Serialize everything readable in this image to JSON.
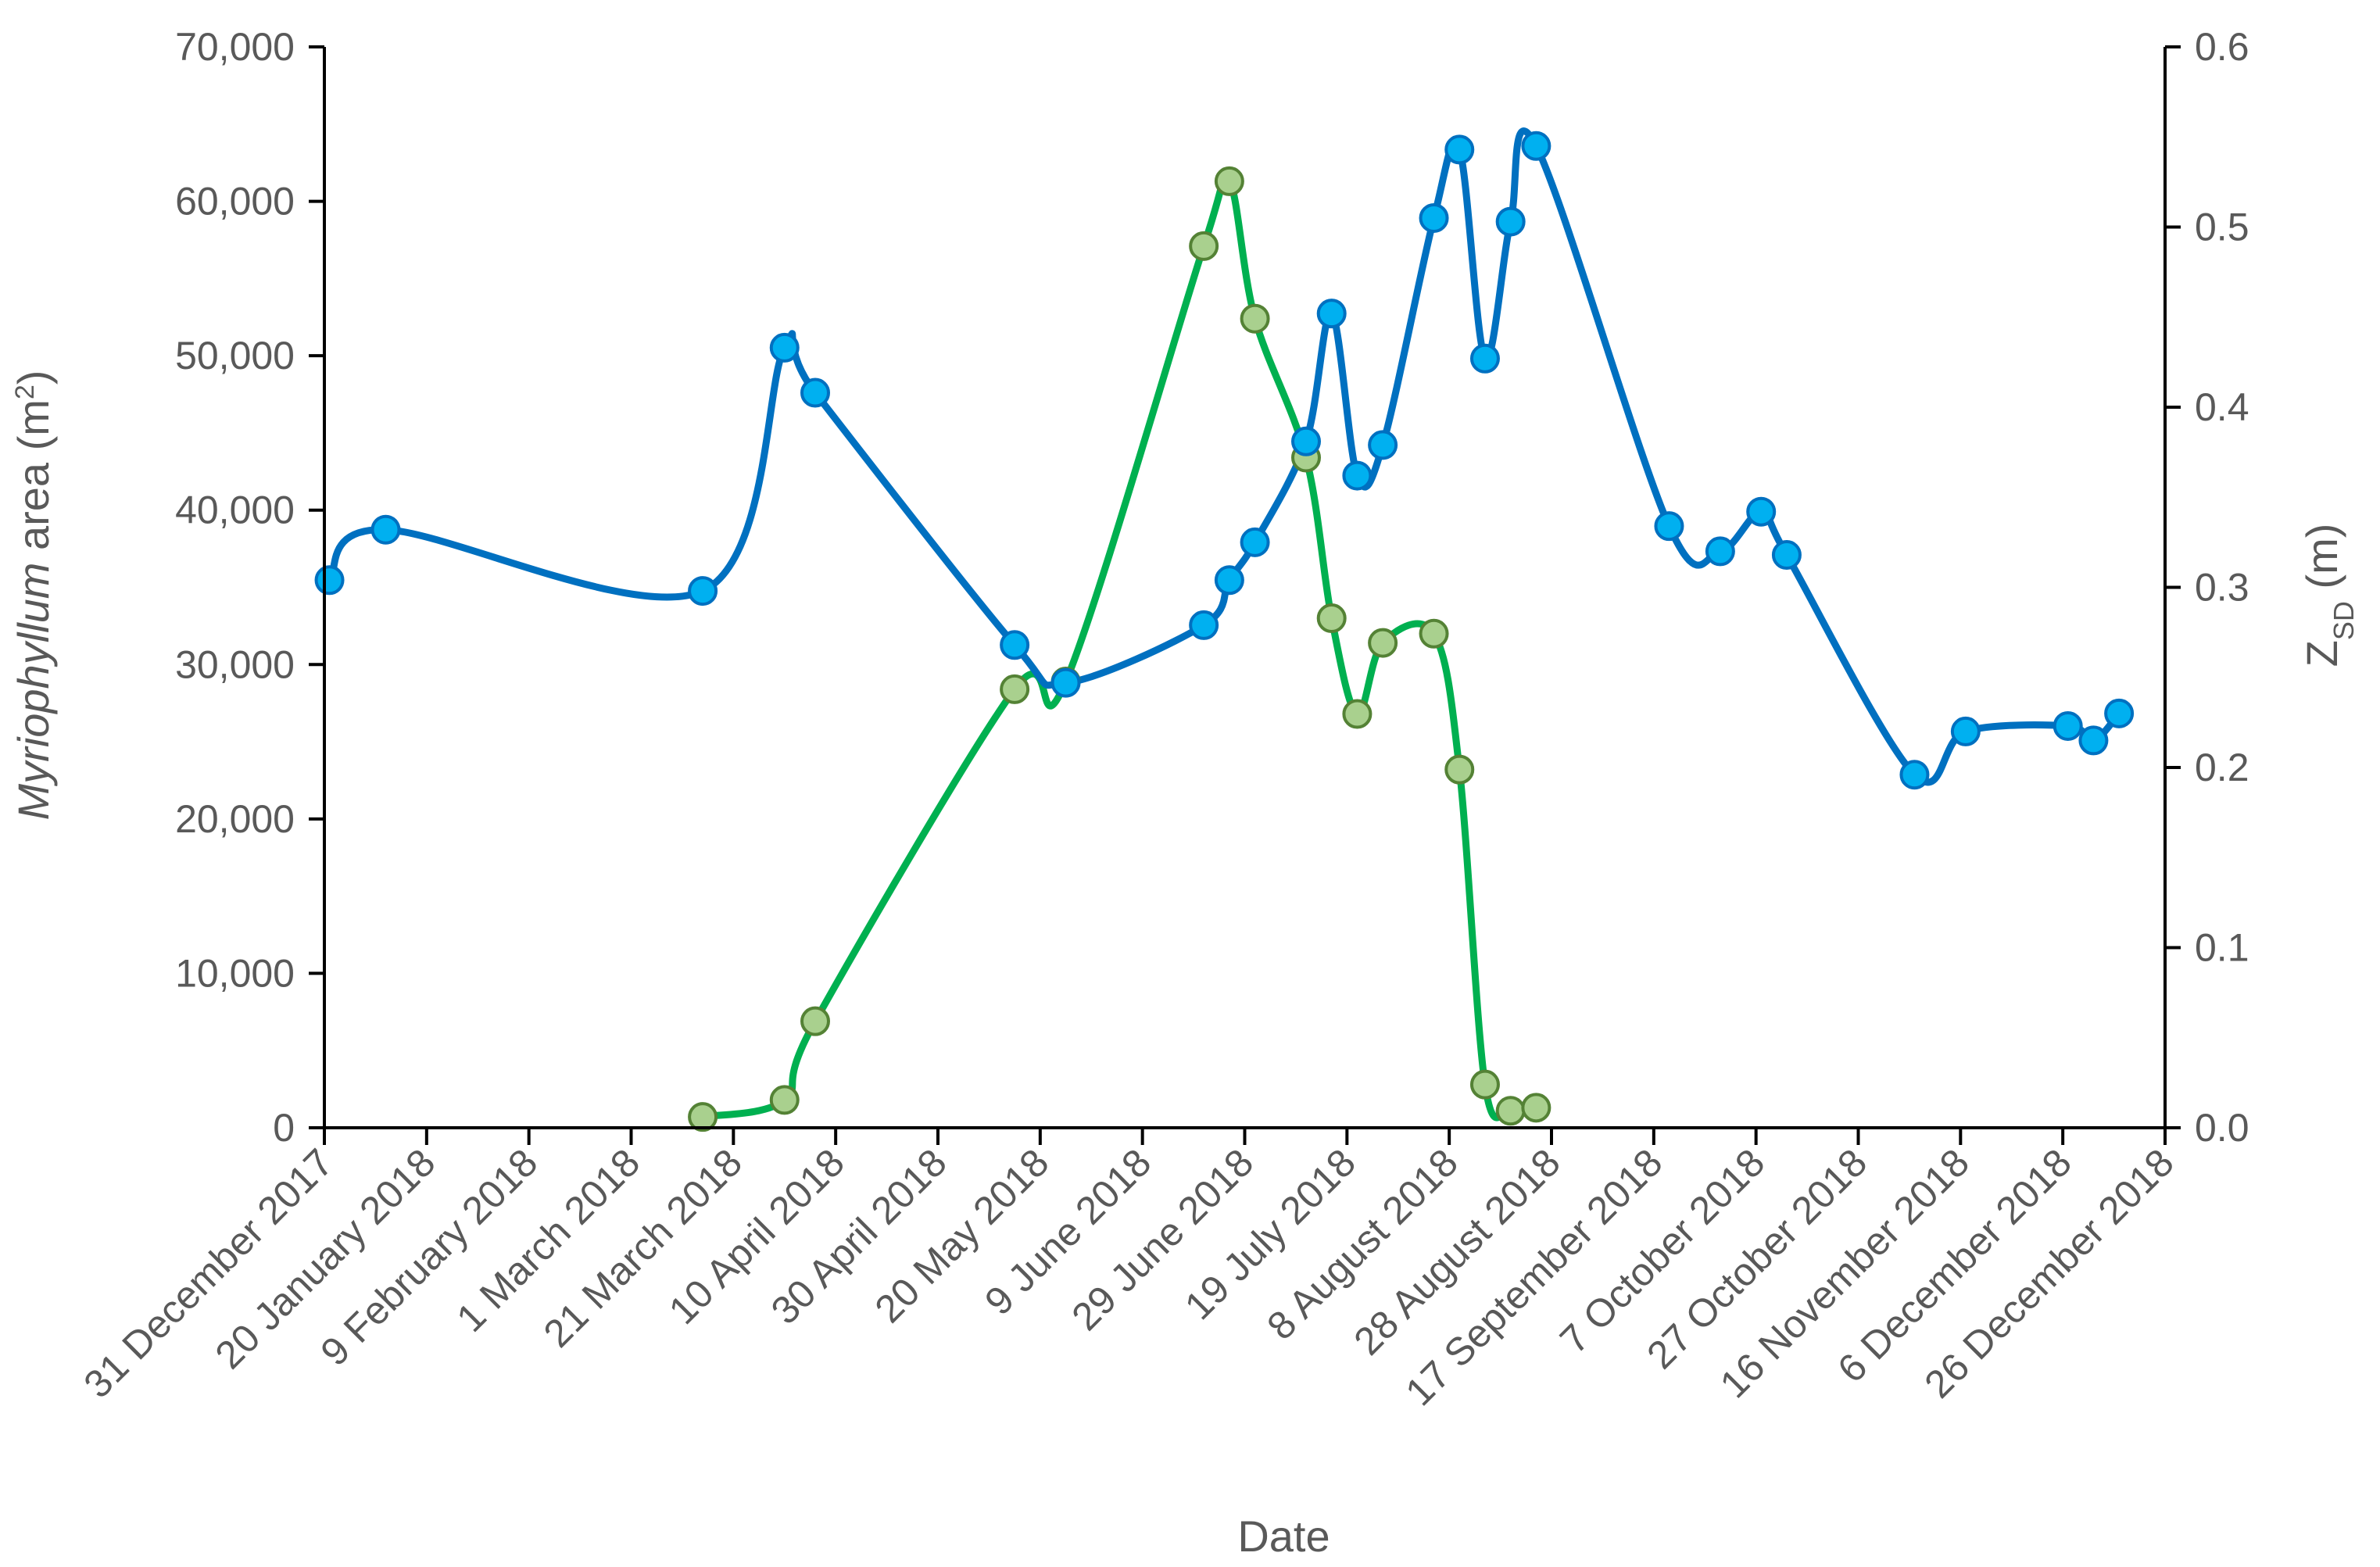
{
  "chart_data": {
    "type": "line",
    "xlabel": "Date",
    "ylabel": "Myriophyllum area (m²)",
    "ylabel_parts": {
      "italic": "Myriophyllum",
      "rest": " area (m",
      "sup": "2",
      "close": ")"
    },
    "y2label": "ZSD (m)",
    "y2label_parts": {
      "main": "Z",
      "sub": "SD",
      "rest": " (m)"
    },
    "x_domain": [
      "2017-12-31",
      "2018-12-26"
    ],
    "x_ticks": [
      {
        "date": "2017-12-31",
        "label": "31 December 2017"
      },
      {
        "date": "2018-01-20",
        "label": "20 January 2018"
      },
      {
        "date": "2018-02-09",
        "label": "9 February 2018"
      },
      {
        "date": "2018-03-01",
        "label": "1 March 2018"
      },
      {
        "date": "2018-03-21",
        "label": "21 March 2018"
      },
      {
        "date": "2018-04-10",
        "label": "10 April 2018"
      },
      {
        "date": "2018-04-30",
        "label": "30 April 2018"
      },
      {
        "date": "2018-05-20",
        "label": "20 May 2018"
      },
      {
        "date": "2018-06-09",
        "label": "9 June 2018"
      },
      {
        "date": "2018-06-29",
        "label": "29 June 2018"
      },
      {
        "date": "2018-07-19",
        "label": "19 July 2018"
      },
      {
        "date": "2018-08-08",
        "label": "8 August 2018"
      },
      {
        "date": "2018-08-28",
        "label": "28 August 2018"
      },
      {
        "date": "2018-09-17",
        "label": "17 September 2018"
      },
      {
        "date": "2018-10-07",
        "label": "7 October 2018"
      },
      {
        "date": "2018-10-27",
        "label": "27 October 2018"
      },
      {
        "date": "2018-11-16",
        "label": "16 November 2018"
      },
      {
        "date": "2018-12-06",
        "label": "6 December 2018"
      },
      {
        "date": "2018-12-26",
        "label": "26 December 2018"
      }
    ],
    "ylim": [
      0,
      70000
    ],
    "y_ticks": [
      {
        "value": 0,
        "label": "0"
      },
      {
        "value": 10000,
        "label": "10,000"
      },
      {
        "value": 20000,
        "label": "20,000"
      },
      {
        "value": 30000,
        "label": "30,000"
      },
      {
        "value": 40000,
        "label": "40,000"
      },
      {
        "value": 50000,
        "label": "50,000"
      },
      {
        "value": 60000,
        "label": "60,000"
      },
      {
        "value": 70000,
        "label": "70,000"
      }
    ],
    "y2lim": [
      0,
      0.6
    ],
    "y2_ticks": [
      {
        "value": 0,
        "label": "0.0"
      },
      {
        "value": 0.1,
        "label": "0.1"
      },
      {
        "value": 0.2,
        "label": "0.2"
      },
      {
        "value": 0.3,
        "label": "0.3"
      },
      {
        "value": 0.4,
        "label": "0.4"
      },
      {
        "value": 0.5,
        "label": "0.5"
      },
      {
        "value": 0.6,
        "label": "0.6"
      }
    ],
    "series": [
      {
        "axis": "right",
        "line_color": "#0070C0",
        "marker_fill": "#00B0F0",
        "marker_stroke": "#0070C0",
        "points": [
          {
            "x": "2018-01-01",
            "y": 0.304
          },
          {
            "x": "2018-01-12",
            "y": 0.332
          },
          {
            "x": "2018-03-15",
            "y": 0.298
          },
          {
            "x": "2018-03-31",
            "y": 0.433
          },
          {
            "x": "2018-04-06",
            "y": 0.408
          },
          {
            "x": "2018-05-15",
            "y": 0.268
          },
          {
            "x": "2018-05-25",
            "y": 0.247
          },
          {
            "x": "2018-06-21",
            "y": 0.279
          },
          {
            "x": "2018-06-26",
            "y": 0.304
          },
          {
            "x": "2018-07-01",
            "y": 0.325
          },
          {
            "x": "2018-07-11",
            "y": 0.381
          },
          {
            "x": "2018-07-16",
            "y": 0.452
          },
          {
            "x": "2018-07-21",
            "y": 0.362
          },
          {
            "x": "2018-07-26",
            "y": 0.379
          },
          {
            "x": "2018-08-05",
            "y": 0.505
          },
          {
            "x": "2018-08-10",
            "y": 0.543
          },
          {
            "x": "2018-08-15",
            "y": 0.427
          },
          {
            "x": "2018-08-20",
            "y": 0.503
          },
          {
            "x": "2018-08-25",
            "y": 0.545
          },
          {
            "x": "2018-09-20",
            "y": 0.334
          },
          {
            "x": "2018-09-30",
            "y": 0.32
          },
          {
            "x": "2018-10-08",
            "y": 0.342
          },
          {
            "x": "2018-10-13",
            "y": 0.318
          },
          {
            "x": "2018-11-07",
            "y": 0.196
          },
          {
            "x": "2018-11-17",
            "y": 0.22
          },
          {
            "x": "2018-12-07",
            "y": 0.223
          },
          {
            "x": "2018-12-12",
            "y": 0.215
          },
          {
            "x": "2018-12-17",
            "y": 0.23
          }
        ]
      },
      {
        "axis": "left",
        "line_color": "#00B050",
        "marker_fill": "#A9D08E",
        "marker_stroke": "#548235",
        "points": [
          {
            "x": "2018-03-15",
            "y": 700
          },
          {
            "x": "2018-03-31",
            "y": 1800
          },
          {
            "x": "2018-04-06",
            "y": 6900
          },
          {
            "x": "2018-05-15",
            "y": 28400
          },
          {
            "x": "2018-05-25",
            "y": 28900
          },
          {
            "x": "2018-06-21",
            "y": 57100
          },
          {
            "x": "2018-06-26",
            "y": 61300
          },
          {
            "x": "2018-07-01",
            "y": 52400
          },
          {
            "x": "2018-07-11",
            "y": 43400
          },
          {
            "x": "2018-07-16",
            "y": 33000
          },
          {
            "x": "2018-07-21",
            "y": 26800
          },
          {
            "x": "2018-07-26",
            "y": 31400
          },
          {
            "x": "2018-08-05",
            "y": 32000
          },
          {
            "x": "2018-08-10",
            "y": 23200
          },
          {
            "x": "2018-08-15",
            "y": 2800
          },
          {
            "x": "2018-08-20",
            "y": 1100
          },
          {
            "x": "2018-08-25",
            "y": 1300
          }
        ]
      }
    ]
  }
}
